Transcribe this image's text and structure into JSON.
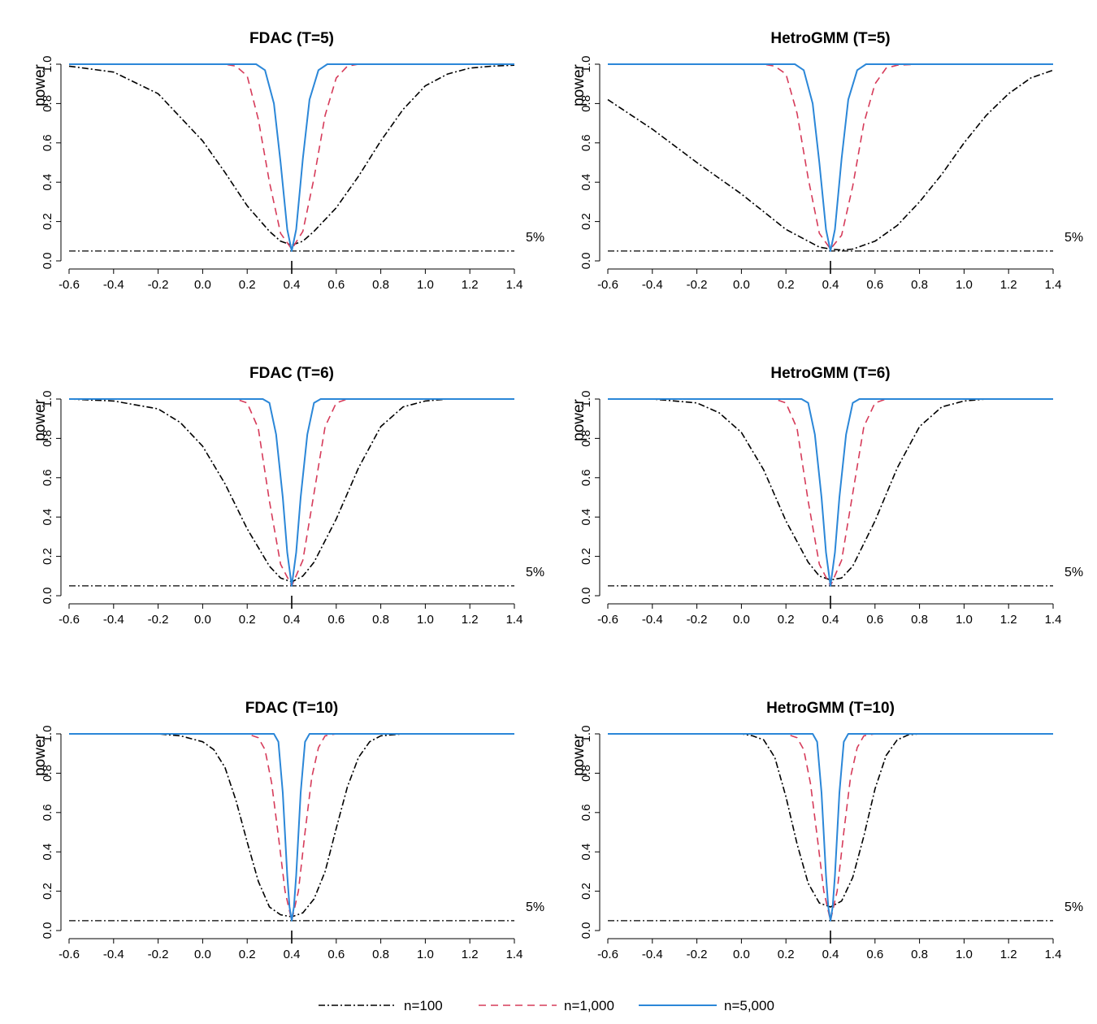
{
  "chart_data": [
    {
      "type": "line",
      "title": "FDAC (T=5)",
      "ylabel": "power",
      "xlim": [
        -0.6,
        1.4
      ],
      "ylim": [
        0.0,
        1.0
      ],
      "xticks": [
        "-0.6",
        "-0.4",
        "-0.2",
        "0.0",
        "0.2",
        "0.4",
        "0.6",
        "0.8",
        "1.0",
        "1.2",
        "1.4"
      ],
      "yticks": [
        "0.0",
        "0.2",
        "0.4",
        "0.6",
        "0.8",
        "1.0"
      ],
      "null_value": 0.4,
      "nominal_level": 0.05,
      "nominal_label": "5%",
      "series": [
        {
          "name": "n=100",
          "x": [
            -0.6,
            -0.4,
            -0.2,
            0.0,
            0.1,
            0.2,
            0.3,
            0.35,
            0.4,
            0.45,
            0.5,
            0.6,
            0.7,
            0.8,
            0.9,
            1.0,
            1.1,
            1.2,
            1.3,
            1.4
          ],
          "values": [
            0.99,
            0.96,
            0.85,
            0.61,
            0.45,
            0.28,
            0.15,
            0.1,
            0.08,
            0.1,
            0.15,
            0.27,
            0.43,
            0.61,
            0.77,
            0.89,
            0.95,
            0.98,
            0.99,
            0.995
          ]
        },
        {
          "name": "n=1,000",
          "x": [
            -0.6,
            0.1,
            0.15,
            0.2,
            0.25,
            0.3,
            0.35,
            0.4,
            0.45,
            0.5,
            0.55,
            0.6,
            0.65,
            0.7,
            1.4
          ],
          "values": [
            1.0,
            1.0,
            0.99,
            0.94,
            0.72,
            0.4,
            0.14,
            0.06,
            0.15,
            0.42,
            0.74,
            0.93,
            0.99,
            1.0,
            1.0
          ]
        },
        {
          "name": "n=5,000",
          "x": [
            -0.6,
            0.24,
            0.28,
            0.32,
            0.35,
            0.38,
            0.4,
            0.42,
            0.45,
            0.48,
            0.52,
            0.56,
            1.4
          ],
          "values": [
            1.0,
            1.0,
            0.97,
            0.8,
            0.5,
            0.16,
            0.05,
            0.16,
            0.52,
            0.82,
            0.97,
            1.0,
            1.0
          ]
        }
      ]
    },
    {
      "type": "line",
      "title": "HetroGMM (T=5)",
      "ylabel": "power",
      "xlim": [
        -0.6,
        1.4
      ],
      "ylim": [
        0.0,
        1.0
      ],
      "xticks": [
        "-0.6",
        "-0.4",
        "-0.2",
        "0.0",
        "0.2",
        "0.4",
        "0.6",
        "0.8",
        "1.0",
        "1.2",
        "1.4"
      ],
      "yticks": [
        "0.0",
        "0.2",
        "0.4",
        "0.6",
        "0.8",
        "1.0"
      ],
      "null_value": 0.4,
      "nominal_level": 0.05,
      "nominal_label": "5%",
      "series": [
        {
          "name": "n=100",
          "x": [
            -0.6,
            -0.4,
            -0.2,
            0.0,
            0.1,
            0.2,
            0.3,
            0.35,
            0.4,
            0.45,
            0.5,
            0.6,
            0.7,
            0.8,
            0.9,
            1.0,
            1.1,
            1.2,
            1.3,
            1.4
          ],
          "values": [
            0.82,
            0.67,
            0.5,
            0.34,
            0.25,
            0.16,
            0.1,
            0.07,
            0.06,
            0.055,
            0.06,
            0.1,
            0.18,
            0.3,
            0.44,
            0.6,
            0.74,
            0.85,
            0.93,
            0.97
          ]
        },
        {
          "name": "n=1,000",
          "x": [
            -0.6,
            0.1,
            0.15,
            0.2,
            0.25,
            0.3,
            0.35,
            0.4,
            0.45,
            0.5,
            0.55,
            0.6,
            0.65,
            0.7,
            0.8,
            1.4
          ],
          "values": [
            1.0,
            1.0,
            0.99,
            0.95,
            0.75,
            0.42,
            0.14,
            0.06,
            0.13,
            0.38,
            0.7,
            0.9,
            0.98,
            0.995,
            1.0,
            1.0
          ]
        },
        {
          "name": "n=5,000",
          "x": [
            -0.6,
            0.24,
            0.28,
            0.32,
            0.35,
            0.38,
            0.4,
            0.42,
            0.45,
            0.48,
            0.52,
            0.56,
            1.4
          ],
          "values": [
            1.0,
            1.0,
            0.97,
            0.8,
            0.5,
            0.16,
            0.05,
            0.16,
            0.52,
            0.82,
            0.97,
            1.0,
            1.0
          ]
        }
      ]
    },
    {
      "type": "line",
      "title": "FDAC (T=6)",
      "ylabel": "power",
      "xlim": [
        -0.6,
        1.4
      ],
      "ylim": [
        0.0,
        1.0
      ],
      "xticks": [
        "-0.6",
        "-0.4",
        "-0.2",
        "0.0",
        "0.2",
        "0.4",
        "0.6",
        "0.8",
        "1.0",
        "1.2",
        "1.4"
      ],
      "yticks": [
        "0.0",
        "0.2",
        "0.4",
        "0.6",
        "0.8",
        "1.0"
      ],
      "null_value": 0.4,
      "nominal_level": 0.05,
      "nominal_label": "5%",
      "series": [
        {
          "name": "n=100",
          "x": [
            -0.6,
            -0.4,
            -0.2,
            -0.1,
            0.0,
            0.1,
            0.2,
            0.3,
            0.35,
            0.4,
            0.45,
            0.5,
            0.6,
            0.7,
            0.8,
            0.9,
            1.0,
            1.1,
            1.4
          ],
          "values": [
            1.0,
            0.99,
            0.95,
            0.88,
            0.76,
            0.57,
            0.34,
            0.15,
            0.09,
            0.07,
            0.1,
            0.17,
            0.39,
            0.65,
            0.86,
            0.96,
            0.99,
            1.0,
            1.0
          ]
        },
        {
          "name": "n=1,000",
          "x": [
            -0.6,
            0.15,
            0.2,
            0.25,
            0.3,
            0.35,
            0.4,
            0.45,
            0.5,
            0.55,
            0.6,
            0.65,
            1.4
          ],
          "values": [
            1.0,
            1.0,
            0.98,
            0.85,
            0.48,
            0.16,
            0.05,
            0.18,
            0.52,
            0.86,
            0.98,
            1.0,
            1.0
          ]
        },
        {
          "name": "n=5,000",
          "x": [
            -0.6,
            0.27,
            0.3,
            0.33,
            0.36,
            0.38,
            0.4,
            0.42,
            0.44,
            0.47,
            0.5,
            0.53,
            1.4
          ],
          "values": [
            1.0,
            1.0,
            0.98,
            0.82,
            0.5,
            0.22,
            0.05,
            0.22,
            0.5,
            0.82,
            0.98,
            1.0,
            1.0
          ]
        }
      ]
    },
    {
      "type": "line",
      "title": "HetroGMM (T=6)",
      "ylabel": "power",
      "xlim": [
        -0.6,
        1.4
      ],
      "ylim": [
        0.0,
        1.0
      ],
      "xticks": [
        "-0.6",
        "-0.4",
        "-0.2",
        "0.0",
        "0.2",
        "0.4",
        "0.6",
        "0.8",
        "1.0",
        "1.2",
        "1.4"
      ],
      "yticks": [
        "0.0",
        "0.2",
        "0.4",
        "0.6",
        "0.8",
        "1.0"
      ],
      "null_value": 0.4,
      "nominal_level": 0.05,
      "nominal_label": "5%",
      "series": [
        {
          "name": "n=100",
          "x": [
            -0.6,
            -0.4,
            -0.2,
            -0.1,
            0.0,
            0.1,
            0.2,
            0.3,
            0.35,
            0.4,
            0.45,
            0.5,
            0.6,
            0.7,
            0.8,
            0.9,
            1.0,
            1.1,
            1.4
          ],
          "values": [
            1.0,
            1.0,
            0.98,
            0.93,
            0.83,
            0.64,
            0.38,
            0.17,
            0.1,
            0.08,
            0.09,
            0.15,
            0.38,
            0.65,
            0.86,
            0.96,
            0.99,
            1.0,
            1.0
          ]
        },
        {
          "name": "n=1,000",
          "x": [
            -0.6,
            0.15,
            0.2,
            0.25,
            0.3,
            0.35,
            0.4,
            0.45,
            0.5,
            0.55,
            0.6,
            0.65,
            1.4
          ],
          "values": [
            1.0,
            1.0,
            0.98,
            0.85,
            0.48,
            0.16,
            0.05,
            0.18,
            0.52,
            0.86,
            0.98,
            1.0,
            1.0
          ]
        },
        {
          "name": "n=5,000",
          "x": [
            -0.6,
            0.27,
            0.3,
            0.33,
            0.36,
            0.38,
            0.4,
            0.42,
            0.44,
            0.47,
            0.5,
            0.53,
            1.4
          ],
          "values": [
            1.0,
            1.0,
            0.98,
            0.82,
            0.5,
            0.22,
            0.05,
            0.22,
            0.5,
            0.82,
            0.98,
            1.0,
            1.0
          ]
        }
      ]
    },
    {
      "type": "line",
      "title": "FDAC (T=10)",
      "ylabel": "power",
      "xlim": [
        -0.6,
        1.4
      ],
      "ylim": [
        0.0,
        1.0
      ],
      "xticks": [
        "-0.6",
        "-0.4",
        "-0.2",
        "0.0",
        "0.2",
        "0.4",
        "0.6",
        "0.8",
        "1.0",
        "1.2",
        "1.4"
      ],
      "yticks": [
        "0.0",
        "0.2",
        "0.4",
        "0.6",
        "0.8",
        "1.0"
      ],
      "null_value": 0.4,
      "nominal_level": 0.05,
      "nominal_label": "5%",
      "series": [
        {
          "name": "n=100",
          "x": [
            -0.6,
            -0.2,
            -0.1,
            0.0,
            0.05,
            0.1,
            0.15,
            0.2,
            0.25,
            0.3,
            0.35,
            0.4,
            0.45,
            0.5,
            0.55,
            0.6,
            0.65,
            0.7,
            0.75,
            0.8,
            0.9,
            1.4
          ],
          "values": [
            1.0,
            1.0,
            0.99,
            0.96,
            0.92,
            0.83,
            0.66,
            0.45,
            0.25,
            0.12,
            0.08,
            0.07,
            0.09,
            0.16,
            0.3,
            0.52,
            0.73,
            0.88,
            0.96,
            0.99,
            1.0,
            1.0
          ]
        },
        {
          "name": "n=1,000",
          "x": [
            -0.6,
            0.2,
            0.25,
            0.28,
            0.31,
            0.34,
            0.37,
            0.4,
            0.43,
            0.46,
            0.49,
            0.52,
            0.55,
            0.6,
            1.4
          ],
          "values": [
            1.0,
            1.0,
            0.98,
            0.92,
            0.75,
            0.48,
            0.2,
            0.05,
            0.2,
            0.5,
            0.78,
            0.93,
            0.99,
            1.0,
            1.0
          ]
        },
        {
          "name": "n=5,000",
          "x": [
            -0.6,
            0.32,
            0.34,
            0.36,
            0.38,
            0.39,
            0.4,
            0.41,
            0.42,
            0.44,
            0.46,
            0.48,
            1.4
          ],
          "values": [
            1.0,
            1.0,
            0.96,
            0.7,
            0.28,
            0.12,
            0.05,
            0.12,
            0.28,
            0.7,
            0.96,
            1.0,
            1.0
          ]
        }
      ]
    },
    {
      "type": "line",
      "title": "HetroGMM (T=10)",
      "ylabel": "power",
      "xlim": [
        -0.6,
        1.4
      ],
      "ylim": [
        0.0,
        1.0
      ],
      "xticks": [
        "-0.6",
        "-0.4",
        "-0.2",
        "0.0",
        "0.2",
        "0.4",
        "0.6",
        "0.8",
        "1.0",
        "1.2",
        "1.4"
      ],
      "yticks": [
        "0.0",
        "0.2",
        "0.4",
        "0.6",
        "0.8",
        "1.0"
      ],
      "null_value": 0.4,
      "nominal_level": 0.05,
      "nominal_label": "5%",
      "series": [
        {
          "name": "n=100",
          "x": [
            -0.6,
            0.0,
            0.05,
            0.1,
            0.15,
            0.2,
            0.25,
            0.3,
            0.35,
            0.4,
            0.45,
            0.5,
            0.55,
            0.6,
            0.65,
            0.7,
            0.75,
            0.8,
            0.9,
            1.4
          ],
          "values": [
            1.0,
            1.0,
            0.99,
            0.97,
            0.88,
            0.68,
            0.44,
            0.24,
            0.14,
            0.12,
            0.15,
            0.27,
            0.48,
            0.72,
            0.89,
            0.97,
            0.995,
            1.0,
            1.0,
            1.0
          ]
        },
        {
          "name": "n=1,000",
          "x": [
            -0.6,
            0.2,
            0.25,
            0.28,
            0.31,
            0.34,
            0.37,
            0.4,
            0.43,
            0.46,
            0.49,
            0.52,
            0.55,
            0.6,
            1.4
          ],
          "values": [
            1.0,
            1.0,
            0.98,
            0.92,
            0.75,
            0.48,
            0.2,
            0.05,
            0.2,
            0.5,
            0.78,
            0.93,
            0.99,
            1.0,
            1.0
          ]
        },
        {
          "name": "n=5,000",
          "x": [
            -0.6,
            0.32,
            0.34,
            0.36,
            0.38,
            0.39,
            0.4,
            0.41,
            0.42,
            0.44,
            0.46,
            0.48,
            1.4
          ],
          "values": [
            1.0,
            1.0,
            0.96,
            0.7,
            0.28,
            0.12,
            0.05,
            0.12,
            0.28,
            0.7,
            0.96,
            1.0,
            1.0
          ]
        }
      ]
    }
  ],
  "legend": [
    {
      "label": "n=100",
      "color": "#000000",
      "dash": "dot-dash"
    },
    {
      "label": "n=1,000",
      "color": "#d63b5a",
      "dash": "dashed"
    },
    {
      "label": "n=5,000",
      "color": "#2b87d8",
      "dash": "solid"
    }
  ],
  "colors": {
    "n100": "#000000",
    "n1000": "#d63b5a",
    "n5000": "#2b87d8",
    "axis": "#000000"
  }
}
